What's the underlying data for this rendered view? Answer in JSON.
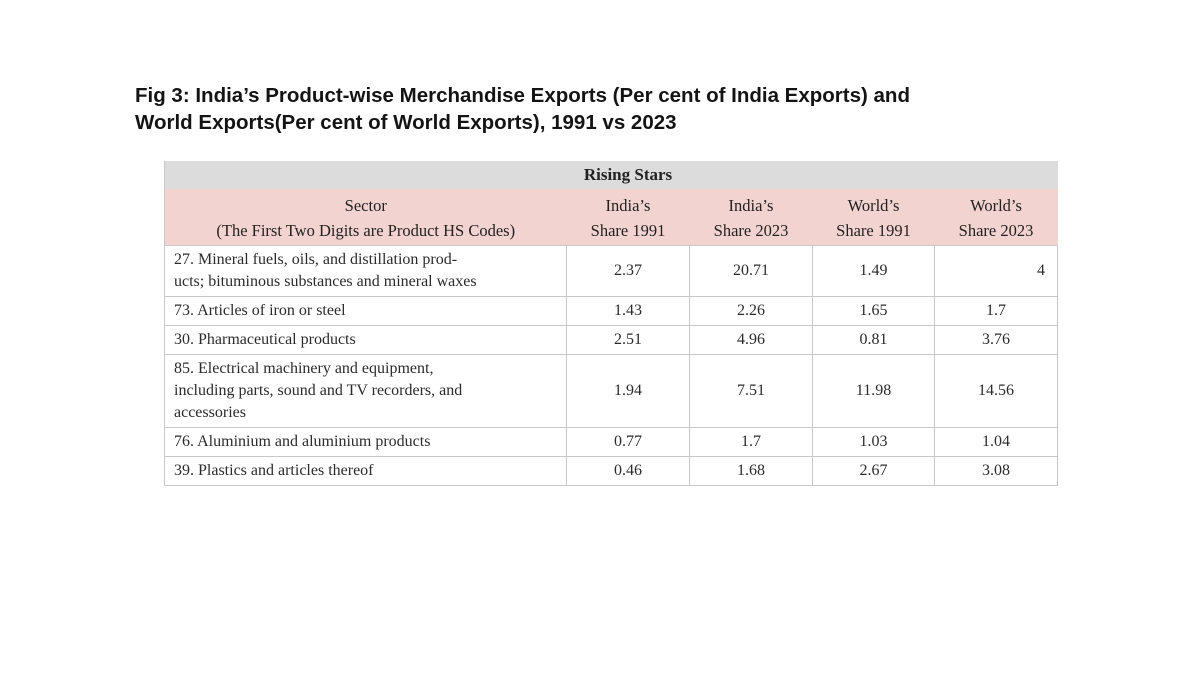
{
  "title": {
    "line1": "Fig 3: India’s Product-wise Merchandise Exports (Per cent of India Exports) and",
    "line2": "World Exports(Per cent of World Exports), 1991 vs 2023"
  },
  "table": {
    "group_label": "Rising Stars",
    "headers": [
      {
        "line1": "Sector",
        "line2": "(The First Two Digits are Product HS Codes)"
      },
      {
        "line1": "India’s",
        "line2": "Share 1991"
      },
      {
        "line1": "India’s",
        "line2": "Share 2023"
      },
      {
        "line1": "World’s",
        "line2": "Share 1991"
      },
      {
        "line1": "World’s",
        "line2": "Share 2023"
      }
    ],
    "rows": [
      {
        "sector_lines": [
          "27. Mineral fuels, oils, and distillation prod-",
          "ucts; bituminous substances and mineral waxes"
        ],
        "values": [
          "2.37",
          "20.71",
          "1.49",
          "4"
        ]
      },
      {
        "sector_lines": [
          "73. Articles of iron or steel"
        ],
        "values": [
          "1.43",
          "2.26",
          "1.65",
          "1.7"
        ]
      },
      {
        "sector_lines": [
          "30. Pharmaceutical products"
        ],
        "values": [
          "2.51",
          "4.96",
          "0.81",
          "3.76"
        ]
      },
      {
        "sector_lines": [
          "85. Electrical machinery and equipment,",
          "including parts, sound and TV recorders, and",
          "accessories"
        ],
        "values": [
          "1.94",
          "7.51",
          "11.98",
          "14.56"
        ]
      },
      {
        "sector_lines": [
          "76. Aluminium and aluminium products"
        ],
        "values": [
          "0.77",
          "1.7",
          "1.03",
          "1.04"
        ]
      },
      {
        "sector_lines": [
          "39. Plastics and articles thereof"
        ],
        "values": [
          "0.46",
          "1.68",
          "2.67",
          "3.08"
        ]
      }
    ]
  }
}
